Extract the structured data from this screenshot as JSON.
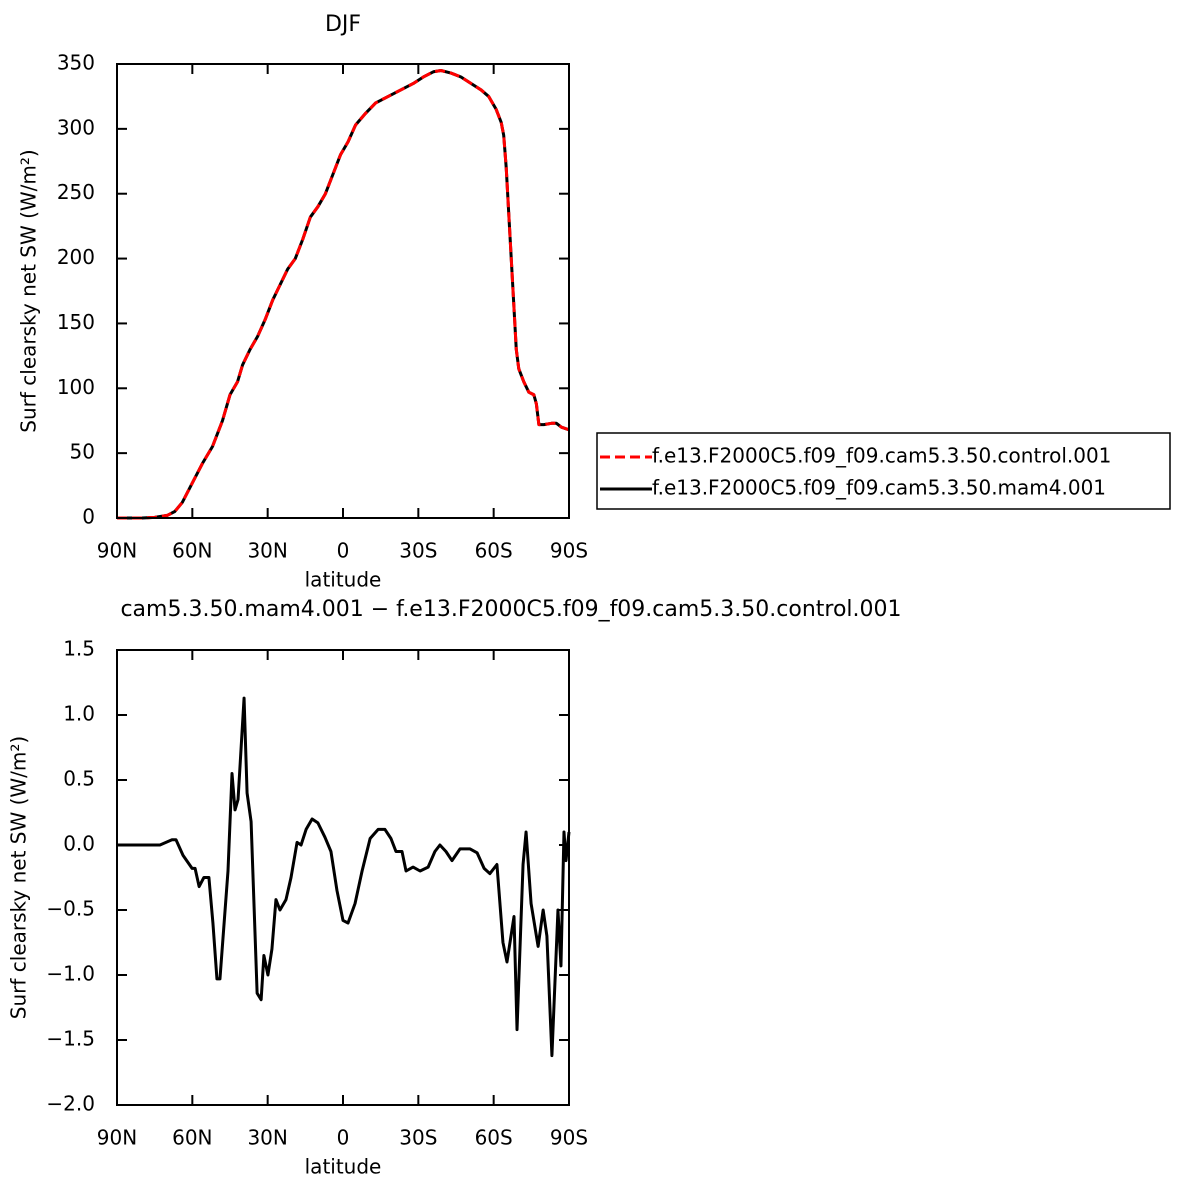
{
  "chart_data": [
    {
      "type": "line",
      "title": "DJF",
      "xlabel": "latitude",
      "ylabel": "Surf clearsky net SW (W/m²)",
      "xlim": [
        90,
        -90
      ],
      "ylim": [
        0,
        350
      ],
      "xticks": [
        {
          "value": 90,
          "label": "90N"
        },
        {
          "value": 60,
          "label": "60N"
        },
        {
          "value": 30,
          "label": "30N"
        },
        0,
        {
          "value": -30,
          "label": "30S"
        },
        {
          "value": -60,
          "label": "60S"
        },
        {
          "value": -90,
          "label": "90S"
        }
      ],
      "yticks": [
        0,
        50,
        100,
        150,
        200,
        250,
        300,
        350
      ],
      "legend_position": "right",
      "x": [
        90,
        80,
        75,
        70,
        67,
        64,
        60,
        56,
        52,
        48,
        45,
        42,
        40,
        37,
        34,
        31,
        28,
        25,
        22,
        19,
        16,
        13,
        10,
        7,
        4,
        1,
        -2,
        -5,
        -9,
        -13,
        -18,
        -23,
        -28,
        -32,
        -36,
        -39,
        -43,
        -47,
        -51,
        -55,
        -58,
        -61,
        -63,
        -64,
        -65,
        -66,
        -67,
        -68,
        -69,
        -70,
        -72,
        -74,
        -76,
        -77,
        -78,
        -80,
        -83,
        -85,
        -87,
        -90
      ],
      "series": [
        {
          "name": "f.e13.F2000C5.f09_f09.cam5.3.50.mam4.001",
          "color": "#000000",
          "dash": false,
          "values": [
            0,
            0,
            0.5,
            2,
            5,
            12,
            27,
            42,
            55,
            75,
            95,
            105,
            118,
            130,
            140,
            153,
            168,
            180,
            192,
            200,
            215,
            232,
            240,
            250,
            265,
            280,
            290,
            303,
            312,
            320,
            325,
            330,
            335,
            340,
            344,
            345,
            343,
            340,
            335,
            330,
            325,
            315,
            305,
            295,
            270,
            235,
            200,
            165,
            130,
            115,
            105,
            97,
            95,
            88,
            72,
            72,
            73,
            73,
            70,
            68
          ]
        },
        {
          "name": "f.e13.F2000C5.f09_f09.cam5.3.50.control.001",
          "color": "#ff0000",
          "dash": true,
          "values": [
            0,
            0,
            0.5,
            2,
            5,
            12,
            27,
            42,
            55,
            75,
            95,
            105,
            118,
            130,
            140,
            153,
            168,
            180,
            192,
            200,
            215,
            232,
            240,
            250,
            265,
            280,
            290,
            303,
            312,
            320,
            325,
            330,
            335,
            340,
            344,
            345,
            343,
            340,
            335,
            330,
            325,
            315,
            305,
            295,
            270,
            235,
            200,
            165,
            130,
            115,
            105,
            97,
            95,
            88,
            72,
            72,
            73,
            73,
            70,
            68
          ]
        }
      ]
    },
    {
      "type": "line",
      "title": "cam5.3.50.mam4.001 − f.e13.F2000C5.f09_f09.cam5.3.50.control.001",
      "xlabel": "latitude",
      "ylabel": "Surf clearsky net SW (W/m²)",
      "xlim": [
        90,
        -90
      ],
      "ylim": [
        -2.0,
        1.5
      ],
      "xticks": [
        {
          "value": 90,
          "label": "90N"
        },
        {
          "value": 60,
          "label": "60N"
        },
        {
          "value": 30,
          "label": "30N"
        },
        0,
        {
          "value": -30,
          "label": "30S"
        },
        {
          "value": -60,
          "label": "60S"
        },
        {
          "value": -90,
          "label": "90S"
        }
      ],
      "yticks": [
        {
          "value": 1.5,
          "label": "1.5"
        },
        {
          "value": 1.0,
          "label": "1.0"
        },
        {
          "value": 0.5,
          "label": "0.5"
        },
        {
          "value": 0.0,
          "label": "0.0"
        },
        {
          "value": -0.5,
          "label": "−0.5"
        },
        {
          "value": -1.0,
          "label": "−1.0"
        },
        {
          "value": -1.5,
          "label": "−1.5"
        },
        {
          "value": -2.0,
          "label": "−2.0"
        }
      ],
      "x": [
        90,
        72.9,
        68.1,
        66.5,
        63.7,
        60.1,
        58.9,
        57.3,
        55.4,
        53.4,
        51.8,
        50.2,
        49,
        45.8,
        44.2,
        43,
        41.8,
        39.4,
        38.2,
        36.6,
        34.2,
        32.6,
        31.5,
        29.9,
        28.3,
        26.7,
        25.1,
        22.7,
        20.7,
        18.3,
        16.7,
        14.7,
        12.3,
        10,
        7.2,
        4.8,
        2.4,
        0,
        -2,
        -4.8,
        -7.6,
        -10.8,
        -14,
        -16.7,
        -19.1,
        -21.1,
        -23.5,
        -25.1,
        -27.9,
        -30.7,
        -33.9,
        -36.6,
        -38.6,
        -41,
        -43.4,
        -46.6,
        -50.6,
        -53.4,
        -56.2,
        -58.5,
        -61.3,
        -63.7,
        -65.3,
        -68.1,
        -69.3,
        -71.7,
        -72.9,
        -74.9,
        -77.7,
        -79.7,
        -81.2,
        -83.2,
        -85.6,
        -86.8,
        -88,
        -88.8,
        -90
      ],
      "series": [
        {
          "color": "#000000",
          "dash": false,
          "values": [
            0,
            0,
            0.04,
            0.04,
            -0.08,
            -0.18,
            -0.18,
            -0.32,
            -0.25,
            -0.25,
            -0.6,
            -1.03,
            -1.03,
            -0.2,
            0.55,
            0.27,
            0.35,
            1.13,
            0.4,
            0.18,
            -1.14,
            -1.19,
            -0.85,
            -1.0,
            -0.8,
            -0.42,
            -0.5,
            -0.42,
            -0.25,
            0.02,
            0.0,
            0.12,
            0.2,
            0.17,
            0.06,
            -0.05,
            -0.35,
            -0.58,
            -0.6,
            -0.45,
            -0.2,
            0.05,
            0.12,
            0.12,
            0.05,
            -0.05,
            -0.05,
            -0.2,
            -0.17,
            -0.2,
            -0.17,
            -0.05,
            0.0,
            -0.05,
            -0.12,
            -0.03,
            -0.03,
            -0.06,
            -0.18,
            -0.22,
            -0.15,
            -0.75,
            -0.9,
            -0.55,
            -1.42,
            -0.15,
            0.1,
            -0.45,
            -0.78,
            -0.5,
            -0.7,
            -1.62,
            -0.5,
            -0.93,
            0.1,
            -0.12,
            0.1
          ]
        }
      ]
    }
  ]
}
